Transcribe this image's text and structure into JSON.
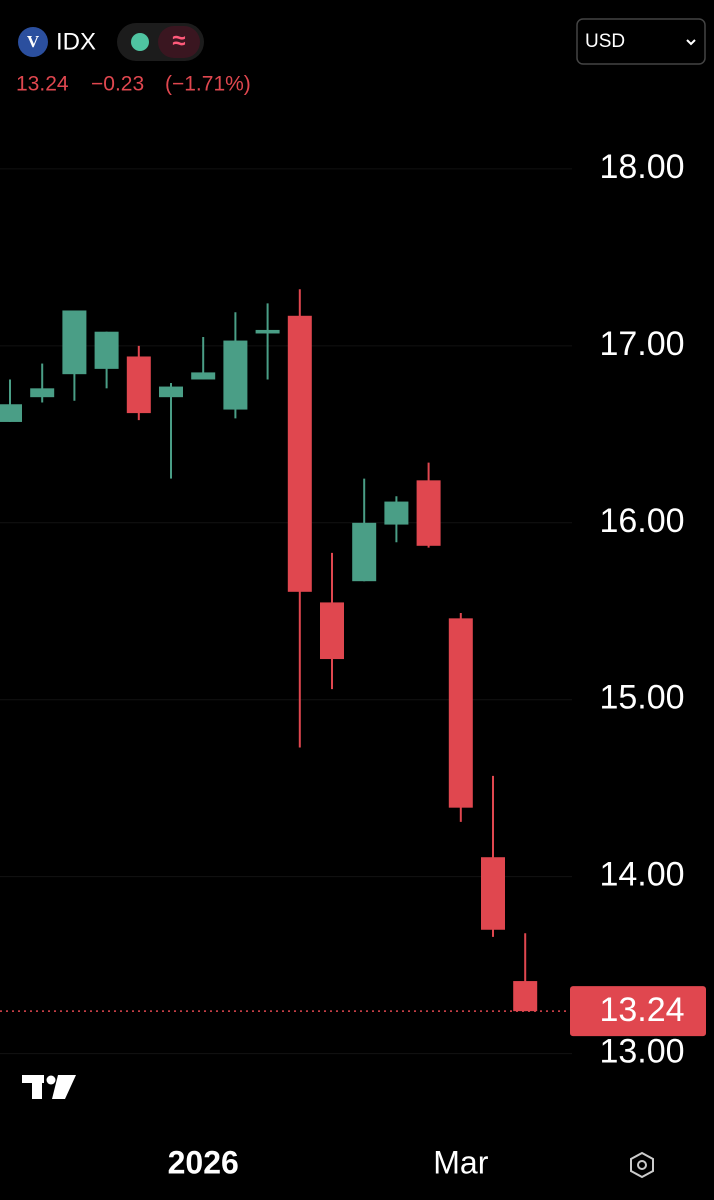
{
  "header": {
    "symbol": "IDX",
    "price": "13.24",
    "change": "−0.23",
    "change_pct": "(−1.71%)",
    "currency": "USD"
  },
  "chart_data": {
    "type": "candlestick",
    "categories": [
      null,
      null,
      null,
      null,
      null,
      null,
      "2026",
      null,
      null,
      null,
      null,
      null,
      null,
      null,
      "Mar",
      null,
      null
    ],
    "open": [
      16.57,
      16.71,
      16.84,
      16.87,
      16.94,
      16.71,
      16.81,
      16.64,
      17.07,
      17.17,
      15.55,
      15.67,
      15.99,
      16.24,
      15.46,
      14.11,
      13.41
    ],
    "high": [
      16.81,
      16.9,
      17.2,
      17.08,
      17.0,
      16.79,
      17.05,
      17.19,
      17.24,
      17.32,
      15.83,
      16.25,
      16.15,
      16.34,
      15.49,
      14.57,
      13.68
    ],
    "low": [
      16.57,
      16.68,
      16.69,
      16.76,
      16.58,
      16.25,
      16.81,
      16.59,
      16.81,
      14.73,
      15.06,
      15.67,
      15.89,
      15.86,
      14.31,
      13.66,
      13.24
    ],
    "close": [
      16.67,
      16.76,
      17.2,
      17.08,
      16.62,
      16.77,
      16.85,
      17.03,
      17.09,
      15.61,
      15.23,
      16.0,
      16.12,
      15.87,
      14.39,
      13.7,
      13.24
    ],
    "up_color": "#4a9e86",
    "down_color": "#e0474f",
    "last_price": {
      "value": 13.24,
      "label": "13.24"
    },
    "ylim": [
      12.8,
      18.35
    ],
    "yticks": [
      {
        "value": 13,
        "label": "13.00"
      },
      {
        "value": 14,
        "label": "14.00"
      },
      {
        "value": 15,
        "label": "15.00"
      },
      {
        "value": 16,
        "label": "16.00"
      },
      {
        "value": 17,
        "label": "17.00"
      },
      {
        "value": 18,
        "label": "18.00"
      }
    ],
    "grid": true
  }
}
